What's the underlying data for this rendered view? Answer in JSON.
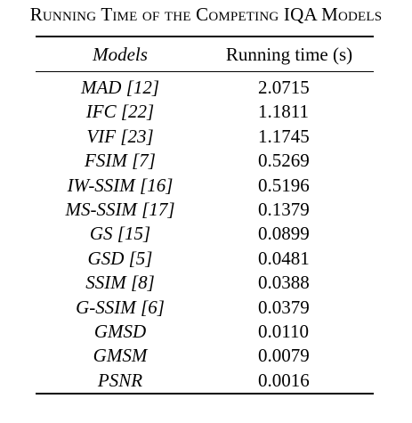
{
  "caption": "Running Time of the Competing IQA Models",
  "table": {
    "headers": {
      "model": "Models",
      "time": "Running time (s)"
    },
    "rows": [
      {
        "model": "MAD [12]",
        "time": "2.0715"
      },
      {
        "model": "IFC [22]",
        "time": "1.1811"
      },
      {
        "model": "VIF [23]",
        "time": "1.1745"
      },
      {
        "model": "FSIM [7]",
        "time": "0.5269"
      },
      {
        "model": "IW-SSIM [16]",
        "time": "0.5196"
      },
      {
        "model": "MS-SSIM [17]",
        "time": "0.1379"
      },
      {
        "model": "GS [15]",
        "time": "0.0899"
      },
      {
        "model": "GSD [5]",
        "time": "0.0481"
      },
      {
        "model": "SSIM [8]",
        "time": "0.0388"
      },
      {
        "model": "G-SSIM [6]",
        "time": "0.0379"
      },
      {
        "model": "GMSD",
        "time": "0.0110"
      },
      {
        "model": "GMSM",
        "time": "0.0079"
      },
      {
        "model": "PSNR",
        "time": "0.0016"
      }
    ]
  }
}
